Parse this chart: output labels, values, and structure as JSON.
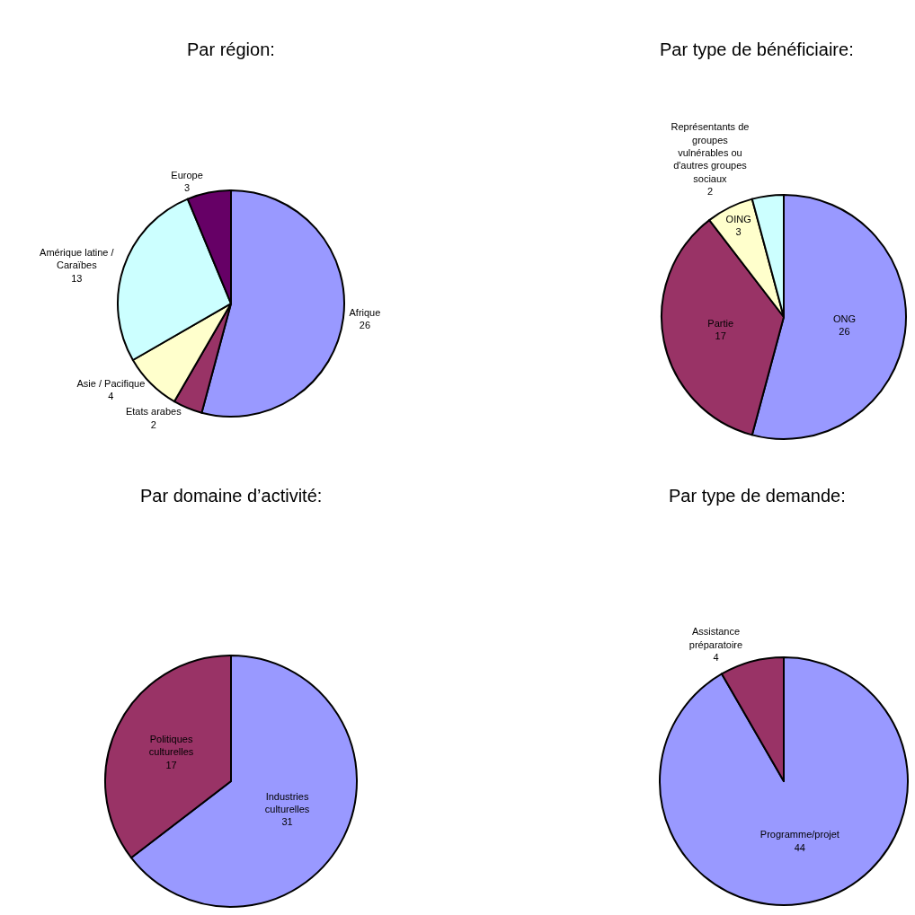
{
  "chart_data": [
    {
      "type": "pie",
      "title": "Par région:",
      "categories": [
        "Afrique",
        "Etats arabes",
        "Asie / Pacifique",
        "Amérique latine /\nCaraïbes",
        "Europe"
      ],
      "values": [
        26,
        2,
        4,
        13,
        3
      ],
      "colors": [
        "#9999ff",
        "#993366",
        "#ffffcc",
        "#ccffff",
        "#660066"
      ],
      "data_labels": true
    },
    {
      "type": "pie",
      "title": "Par type de bénéficiaire:",
      "categories": [
        "ONG",
        "Partie",
        "OING",
        "Représentants de\ngroupes\nvulnérables ou\nd'autres groupes\nsociaux"
      ],
      "values": [
        26,
        17,
        3,
        2
      ],
      "colors": [
        "#9999ff",
        "#993366",
        "#ffffcc",
        "#ccffff"
      ],
      "data_labels": true
    },
    {
      "type": "pie",
      "title": "Par domaine d’activité:",
      "categories": [
        "Industries\nculturelles",
        "Politiques\nculturelles"
      ],
      "values": [
        31,
        17
      ],
      "colors": [
        "#9999ff",
        "#993366"
      ],
      "data_labels": true
    },
    {
      "type": "pie",
      "title": "Par type de demande:",
      "categories": [
        "Programme/projet",
        "Assistance\npréparatoire"
      ],
      "values": [
        44,
        4
      ],
      "colors": [
        "#9999ff",
        "#993366"
      ],
      "data_labels": true
    }
  ]
}
